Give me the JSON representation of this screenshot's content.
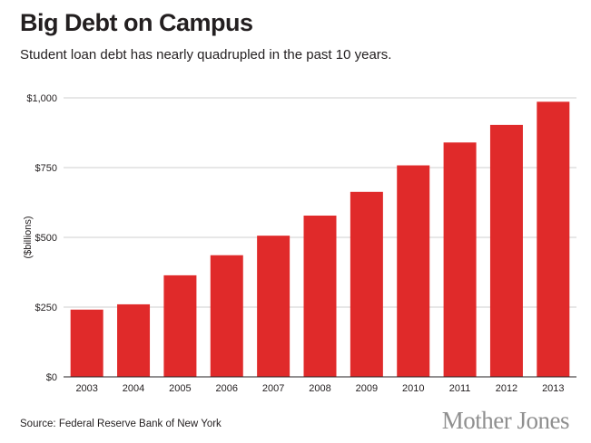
{
  "header": {
    "title": "Big Debt on Campus",
    "subtitle": "Student loan debt has nearly quadrupled in the past 10 years."
  },
  "footer": {
    "source": "Source: Federal Reserve Bank of New York",
    "brand": "Mother Jones"
  },
  "colors": {
    "bar": "#e02a2a",
    "gridline": "#cfcfcf",
    "brand": "#8f8f8f"
  },
  "chart_data": {
    "type": "bar",
    "title": "Big Debt on Campus",
    "subtitle": "Student loan debt has nearly quadrupled in the past 10 years.",
    "xlabel": "",
    "ylabel": "($billions)",
    "categories": [
      "2003",
      "2004",
      "2005",
      "2006",
      "2007",
      "2008",
      "2009",
      "2010",
      "2011",
      "2012",
      "2013"
    ],
    "values": [
      241,
      260,
      364,
      436,
      506,
      578,
      663,
      758,
      840,
      903,
      986
    ],
    "ylim": [
      0,
      1000
    ],
    "yticks": [
      0,
      250,
      500,
      750,
      1000
    ],
    "ytick_labels": [
      "$0",
      "$250",
      "$500",
      "$750",
      "$1,000"
    ],
    "grid": true,
    "legend": "none"
  }
}
